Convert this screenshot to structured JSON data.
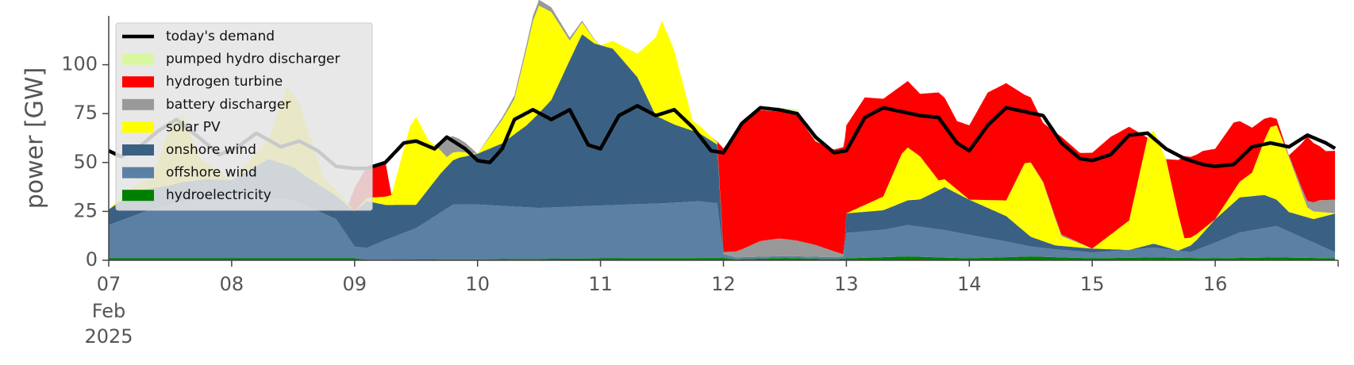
{
  "chart_data": {
    "type": "area",
    "stacked": true,
    "ylabel": "power [GW]",
    "ylim": [
      0,
      125
    ],
    "y_ticks": [
      0,
      25,
      50,
      75,
      100
    ],
    "x_tick_labels": [
      "07",
      "08",
      "09",
      "10",
      "11",
      "12",
      "13",
      "14",
      "15",
      "16"
    ],
    "x_first_tick_extra": [
      "Feb",
      "2025"
    ],
    "xlim": [
      "2025-02-07",
      "2025-02-17"
    ],
    "grid": false,
    "legend_position": "top-left",
    "demand": {
      "name": "today's demand",
      "color": "#000000",
      "x": [
        7.0,
        7.1,
        7.25,
        7.4,
        7.55,
        7.75,
        7.9,
        8.05,
        8.2,
        8.4,
        8.55,
        8.7,
        8.85,
        9.0,
        9.1,
        9.25,
        9.4,
        9.5,
        9.65,
        9.75,
        9.9,
        10.0,
        10.1,
        10.2,
        10.3,
        10.45,
        10.6,
        10.75,
        10.9,
        11.0,
        11.15,
        11.3,
        11.45,
        11.6,
        11.75,
        11.9,
        12.0,
        12.15,
        12.3,
        12.45,
        12.6,
        12.75,
        12.9,
        13.0,
        13.15,
        13.3,
        13.45,
        13.6,
        13.75,
        13.9,
        14.0,
        14.15,
        14.3,
        14.45,
        14.6,
        14.75,
        14.9,
        15.0,
        15.15,
        15.3,
        15.45,
        15.6,
        15.75,
        15.9,
        16.0,
        16.15,
        16.3,
        16.45,
        16.6,
        16.75,
        16.9,
        16.98
      ],
      "values": [
        56,
        53,
        58,
        66,
        72,
        62,
        54,
        58,
        65,
        58,
        61,
        56,
        48,
        47,
        47,
        50,
        60,
        61,
        57,
        63,
        57,
        51,
        50,
        57,
        72,
        77,
        72,
        77,
        59,
        57,
        74,
        79,
        74,
        77,
        68,
        56,
        55,
        70,
        78,
        77,
        75,
        63,
        55,
        56,
        73,
        78,
        76,
        74,
        73,
        60,
        56,
        69,
        78,
        76,
        74,
        60,
        52,
        51,
        54,
        64,
        65,
        57,
        52,
        49,
        48,
        49,
        58,
        60,
        58,
        64,
        60,
        57
      ]
    },
    "series": [
      {
        "name": "hydroelectricity",
        "color": "#008000",
        "x": [
          7.0,
          8.0,
          9.0,
          9.1,
          10.0,
          11.0,
          12.0,
          12.1,
          12.5,
          12.9,
          13.0,
          13.5,
          14.0,
          14.5,
          15.0,
          15.5,
          16.0,
          16.5,
          16.98
        ],
        "values": [
          1.0,
          1.0,
          1.0,
          0.3,
          0.5,
          1.0,
          1.2,
          0.5,
          1.2,
          0.6,
          1.0,
          2.0,
          1.0,
          2.0,
          1.0,
          1.5,
          1.0,
          1.5,
          1.0
        ]
      },
      {
        "name": "offshore wind",
        "color": "#5b80a3",
        "x": [
          7.0,
          7.3,
          7.6,
          8.0,
          8.5,
          8.85,
          9.0,
          9.1,
          9.25,
          9.5,
          9.7,
          9.8,
          10.0,
          10.5,
          11.0,
          11.5,
          11.8,
          11.95,
          12.0,
          12.1,
          12.4,
          12.7,
          12.9,
          12.98,
          13.0,
          13.3,
          13.5,
          13.8,
          14.0,
          14.3,
          14.5,
          14.7,
          15.0,
          15.3,
          15.5,
          15.8,
          16.0,
          16.2,
          16.5,
          16.98
        ],
        "values": [
          17,
          24,
          29,
          32,
          30,
          20,
          6,
          6,
          10,
          16,
          24,
          28,
          28,
          26,
          27,
          28,
          29,
          28,
          2,
          1,
          1,
          1,
          1,
          1,
          13,
          14,
          16,
          14,
          12,
          8,
          5,
          4,
          3,
          4,
          5,
          3,
          8,
          13,
          16,
          3
        ]
      },
      {
        "name": "onshore wind",
        "color": "#3a6183",
        "x": [
          7.0,
          7.2,
          7.5,
          7.8,
          8.0,
          8.3,
          8.6,
          8.85,
          9.0,
          9.1,
          9.25,
          9.5,
          9.7,
          9.85,
          10.0,
          10.2,
          10.4,
          10.6,
          10.75,
          10.85,
          10.95,
          11.1,
          11.3,
          11.45,
          11.6,
          11.8,
          11.95,
          12.0,
          12.1,
          12.4,
          12.7,
          12.9,
          12.98,
          13.0,
          13.3,
          13.6,
          13.8,
          14.0,
          14.3,
          14.5,
          14.7,
          15.0,
          15.3,
          15.5,
          15.7,
          15.85,
          16.0,
          16.2,
          16.4,
          16.6,
          16.8,
          16.98
        ],
        "values": [
          8,
          12,
          10,
          10,
          8,
          20,
          15,
          12,
          18,
          24,
          18,
          12,
          20,
          24,
          26,
          32,
          42,
          55,
          75,
          88,
          83,
          80,
          65,
          45,
          40,
          35,
          30,
          0,
          0,
          0,
          0,
          0,
          0,
          10,
          10,
          14,
          22,
          18,
          13,
          5,
          2,
          2,
          0,
          2,
          0,
          5,
          12,
          18,
          17,
          10,
          12,
          20
        ]
      },
      {
        "name": "solar PV",
        "color": "#ffff00",
        "x": [
          7.0,
          7.35,
          7.5,
          7.6,
          7.75,
          8.0,
          8.3,
          8.45,
          8.55,
          8.75,
          9.0,
          9.3,
          9.45,
          9.5,
          9.6,
          9.75,
          10.0,
          10.3,
          10.45,
          10.5,
          10.6,
          10.75,
          11.0,
          11.3,
          11.45,
          11.5,
          11.6,
          11.75,
          12.0,
          13.0,
          13.3,
          13.45,
          13.5,
          13.6,
          13.75,
          14.0,
          14.3,
          14.45,
          14.5,
          14.6,
          14.75,
          15.0,
          15.3,
          15.45,
          15.5,
          15.6,
          15.75,
          16.0,
          16.3,
          16.45,
          16.5,
          16.6,
          16.75,
          16.98
        ],
        "values": [
          0,
          5,
          30,
          35,
          10,
          0,
          10,
          40,
          35,
          5,
          0,
          5,
          40,
          45,
          25,
          5,
          0,
          18,
          50,
          55,
          45,
          10,
          0,
          12,
          40,
          50,
          38,
          5,
          0,
          0,
          7,
          25,
          27,
          22,
          5,
          0,
          8,
          35,
          38,
          30,
          5,
          0,
          15,
          55,
          58,
          45,
          5,
          0,
          12,
          36,
          38,
          28,
          5,
          0
        ]
      },
      {
        "name": "battery discharger",
        "color": "#999999",
        "x": [
          7.0,
          9.0,
          9.2,
          9.5,
          9.65,
          9.75,
          9.9,
          10.0,
          10.5,
          11.0,
          11.9,
          12.0,
          12.15,
          12.3,
          12.45,
          12.6,
          12.75,
          12.9,
          12.98,
          13.0,
          14.0,
          14.5,
          14.7,
          15.0,
          16.0,
          16.5,
          16.7,
          16.85,
          16.98
        ],
        "values": [
          0,
          0,
          0,
          0,
          0,
          10,
          5,
          0,
          3,
          0,
          0,
          1,
          4,
          8,
          9,
          8,
          6,
          3,
          1,
          0,
          0,
          0,
          1,
          0,
          0,
          0,
          2,
          6,
          7
        ]
      },
      {
        "name": "hydrogen turbine",
        "color": "#ff0000",
        "x": [
          7.0,
          8.95,
          9.0,
          9.1,
          9.25,
          9.3,
          10.0,
          11.95,
          12.0,
          12.15,
          12.3,
          12.45,
          12.6,
          12.75,
          12.9,
          12.98,
          13.0,
          13.15,
          13.3,
          13.45,
          13.6,
          13.75,
          13.9,
          14.0,
          14.15,
          14.3,
          14.45,
          14.6,
          14.75,
          14.9,
          15.0,
          15.15,
          15.3,
          15.45,
          15.6,
          15.75,
          15.9,
          16.0,
          16.15,
          16.3,
          16.45,
          16.6,
          16.75,
          16.9,
          16.98
        ],
        "values": [
          0,
          0,
          12,
          16,
          18,
          0,
          0,
          0,
          53,
          64,
          67,
          65,
          64,
          53,
          52,
          55,
          45,
          55,
          50,
          35,
          32,
          45,
          35,
          38,
          55,
          60,
          35,
          30,
          50,
          46,
          49,
          50,
          48,
          0,
          0,
          42,
          40,
          36,
          35,
          23,
          5,
          0,
          33,
          25,
          25
        ]
      },
      {
        "name": "pumped hydro discharger",
        "color": "#d9f7a1",
        "x": [
          7.0,
          12.1,
          12.3,
          12.45,
          12.6,
          12.75,
          12.9,
          16.98
        ],
        "values": [
          0,
          0,
          1,
          2,
          3,
          1,
          0,
          0
        ]
      }
    ],
    "legend_order": [
      "today's demand",
      "pumped hydro discharger",
      "hydrogen turbine",
      "battery discharger",
      "solar PV",
      "onshore wind",
      "offshore wind",
      "hydroelectricity"
    ]
  }
}
